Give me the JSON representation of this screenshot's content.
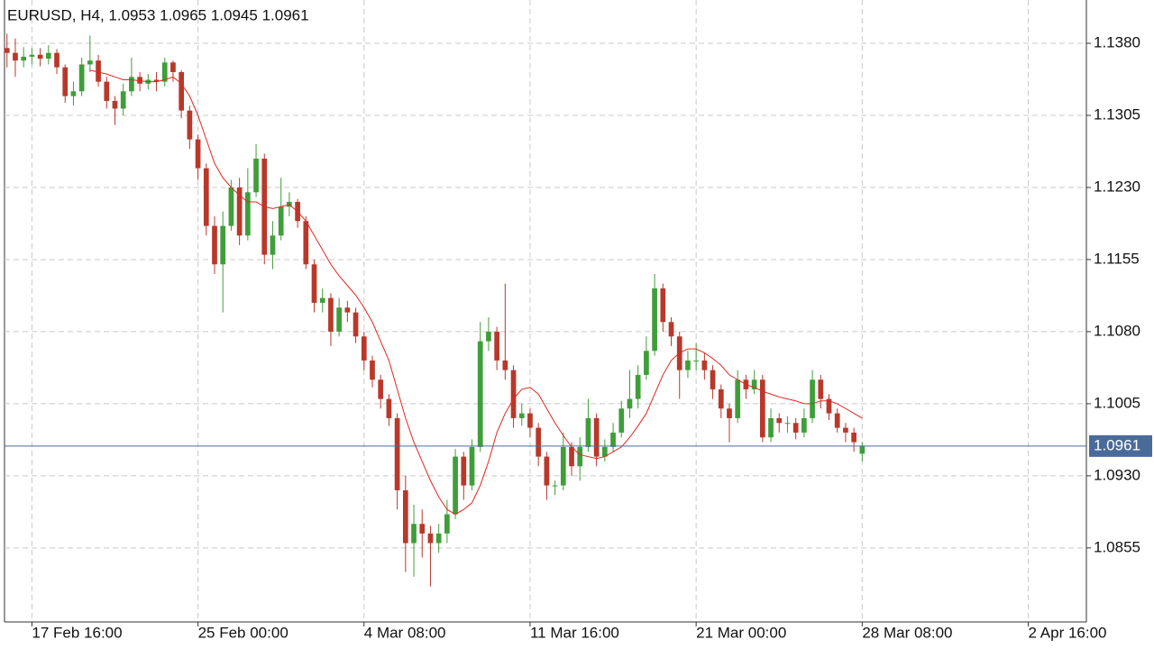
{
  "chart_data": {
    "type": "candlestick",
    "title": "EURUSD, H4, 1.0953 1.0965 1.0945 1.0961",
    "up_color": "#3f9e3a",
    "down_color": "#b8382a",
    "grid": true,
    "xlim": [
      -0.3,
      130
    ],
    "ylim": [
      1.0778,
      1.1425
    ],
    "xticks": [
      {
        "value": 3,
        "label": "17 Feb 16:00"
      },
      {
        "value": 23,
        "label": "25 Feb 00:00"
      },
      {
        "value": 43,
        "label": "4 Mar 08:00"
      },
      {
        "value": 63,
        "label": "11 Mar 16:00"
      },
      {
        "value": 83,
        "label": "21 Mar 00:00"
      },
      {
        "value": 103,
        "label": "28 Mar 08:00"
      },
      {
        "value": 123,
        "label": "2 Apr 16:00"
      }
    ],
    "yticks": [
      {
        "value": 1.138,
        "label": "1.1380"
      },
      {
        "value": 1.1305,
        "label": "1.1305"
      },
      {
        "value": 1.123,
        "label": "1.1230"
      },
      {
        "value": 1.1155,
        "label": "1.1155"
      },
      {
        "value": 1.108,
        "label": "1.1080"
      },
      {
        "value": 1.1005,
        "label": "1.1005"
      },
      {
        "value": 1.093,
        "label": "1.0930"
      },
      {
        "value": 1.0855,
        "label": "1.0855"
      }
    ],
    "current_price": 1.0961,
    "current_price_color": "#4a6b9a",
    "open": [
      1.1375,
      1.137,
      1.1362,
      1.1366,
      1.1368,
      1.1364,
      1.137,
      1.1355,
      1.1325,
      1.133,
      1.1358,
      1.1362,
      1.134,
      1.132,
      1.1312,
      1.133,
      1.1345,
      1.1338,
      1.1342,
      1.134,
      1.136,
      1.135,
      1.131,
      1.128,
      1.125,
      1.119,
      1.115,
      1.119,
      1.123,
      1.118,
      1.1225,
      1.126,
      1.116,
      1.118,
      1.121,
      1.1215,
      1.1195,
      1.115,
      1.111,
      1.1115,
      1.108,
      1.1105,
      1.11,
      1.1075,
      1.105,
      1.103,
      1.101,
      1.099,
      1.0915,
      1.086,
      1.088,
      1.087,
      1.086,
      1.087,
      1.089,
      1.095,
      1.092,
      1.096,
      1.107,
      1.108,
      1.105,
      1.104,
      1.099,
      1.0995,
      1.098,
      1.095,
      1.092,
      1.092,
      1.096,
      1.094,
      1.096,
      1.099,
      1.095,
      1.096,
      1.0975,
      1.1,
      1.101,
      1.1035,
      1.106,
      1.1125,
      1.109,
      1.1075,
      1.104,
      1.105,
      1.105,
      1.104,
      1.102,
      1.1,
      1.099,
      1.103,
      1.102,
      1.103,
      1.097,
      1.099,
      1.0985,
      1.0985,
      1.0975,
      1.099,
      1.103,
      1.101,
      1.0995,
      1.098,
      1.0975,
      1.0953
    ],
    "high": [
      1.139,
      1.1385,
      1.1376,
      1.1375,
      1.1375,
      1.1378,
      1.1374,
      1.1358,
      1.134,
      1.1365,
      1.1388,
      1.1368,
      1.1345,
      1.1325,
      1.1338,
      1.1365,
      1.135,
      1.1348,
      1.135,
      1.1365,
      1.1362,
      1.1352,
      1.1315,
      1.1285,
      1.1255,
      1.12,
      1.1205,
      1.1238,
      1.124,
      1.125,
      1.1275,
      1.1265,
      1.1195,
      1.124,
      1.1225,
      1.1218,
      1.12,
      1.1155,
      1.1125,
      1.112,
      1.1115,
      1.1112,
      1.1105,
      1.108,
      1.1055,
      1.1035,
      1.1015,
      1.0995,
      1.093,
      1.09,
      1.0895,
      1.0878,
      1.088,
      1.0905,
      1.0958,
      1.0955,
      1.0968,
      1.109,
      1.1095,
      1.1085,
      1.113,
      1.1045,
      1.1005,
      1.1,
      1.0985,
      1.0955,
      1.0925,
      1.0975,
      1.0965,
      1.097,
      1.101,
      1.0995,
      1.0968,
      1.0985,
      1.1008,
      1.104,
      1.1045,
      1.1075,
      1.114,
      1.113,
      1.1095,
      1.108,
      1.106,
      1.1068,
      1.1058,
      1.1045,
      1.1025,
      1.1005,
      1.104,
      1.1035,
      1.104,
      1.1035,
      1.1,
      1.0995,
      1.0992,
      1.099,
      1.1,
      1.104,
      1.1035,
      1.1015,
      1.1,
      1.0985,
      1.098,
      1.0965
    ],
    "low": [
      1.1355,
      1.1345,
      1.1355,
      1.1358,
      1.1356,
      1.1358,
      1.1348,
      1.1318,
      1.1315,
      1.1325,
      1.135,
      1.1335,
      1.1312,
      1.1295,
      1.1305,
      1.1325,
      1.133,
      1.1332,
      1.133,
      1.1335,
      1.134,
      1.1302,
      1.127,
      1.1238,
      1.118,
      1.114,
      1.11,
      1.1185,
      1.117,
      1.1175,
      1.122,
      1.115,
      1.1145,
      1.1175,
      1.12,
      1.1188,
      1.1145,
      1.11,
      1.11,
      1.1065,
      1.1075,
      1.109,
      1.1068,
      1.104,
      1.1022,
      1.1,
      1.0982,
      1.0895,
      1.083,
      1.0825,
      1.0845,
      1.0815,
      1.085,
      1.086,
      1.0885,
      1.0905,
      1.0915,
      1.0955,
      1.106,
      1.104,
      1.103,
      1.098,
      1.0982,
      1.097,
      1.094,
      1.0905,
      1.091,
      1.0915,
      1.093,
      1.0925,
      1.0955,
      1.094,
      1.0945,
      1.0955,
      1.097,
      1.099,
      1.1,
      1.103,
      1.1055,
      1.108,
      1.1065,
      1.101,
      1.1032,
      1.104,
      1.103,
      1.101,
      1.099,
      1.0965,
      1.0985,
      1.101,
      1.1015,
      1.0965,
      1.0965,
      1.0975,
      1.0975,
      1.0968,
      1.097,
      1.0985,
      1.1,
      1.0988,
      1.0975,
      1.0965,
      1.0955,
      1.0945
    ],
    "close": [
      1.137,
      1.1362,
      1.1366,
      1.1368,
      1.1364,
      1.137,
      1.1355,
      1.1325,
      1.133,
      1.1358,
      1.1362,
      1.134,
      1.132,
      1.1312,
      1.133,
      1.1345,
      1.1338,
      1.1342,
      1.134,
      1.136,
      1.135,
      1.131,
      1.128,
      1.125,
      1.119,
      1.115,
      1.119,
      1.123,
      1.118,
      1.1225,
      1.126,
      1.116,
      1.118,
      1.121,
      1.1215,
      1.1195,
      1.115,
      1.111,
      1.1115,
      1.108,
      1.1105,
      1.11,
      1.1075,
      1.105,
      1.103,
      1.101,
      1.099,
      1.0915,
      1.086,
      1.088,
      1.087,
      1.086,
      1.087,
      1.089,
      1.095,
      1.092,
      1.096,
      1.107,
      1.108,
      1.105,
      1.104,
      1.099,
      1.0995,
      1.098,
      1.095,
      1.092,
      1.092,
      1.096,
      1.094,
      1.096,
      1.099,
      1.095,
      1.096,
      1.0975,
      1.1,
      1.101,
      1.1035,
      1.106,
      1.1125,
      1.109,
      1.1075,
      1.104,
      1.105,
      1.105,
      1.104,
      1.102,
      1.1,
      1.099,
      1.103,
      1.102,
      1.103,
      1.097,
      1.099,
      1.0985,
      1.0985,
      1.0975,
      1.099,
      1.103,
      1.101,
      1.0995,
      1.098,
      1.0975,
      1.0965,
      1.0961
    ],
    "ma": {
      "color": "#e0271f",
      "values": [
        null,
        null,
        null,
        null,
        null,
        null,
        null,
        null,
        null,
        null,
        1.1352,
        1.135,
        1.1348,
        1.1345,
        1.1342,
        1.1342,
        1.1341,
        1.134,
        1.134,
        1.1342,
        1.1345,
        1.1338,
        1.1325,
        1.1305,
        1.128,
        1.1255,
        1.124,
        1.123,
        1.1222,
        1.1215,
        1.1215,
        1.121,
        1.1208,
        1.121,
        1.1212,
        1.1205,
        1.1195,
        1.118,
        1.1165,
        1.115,
        1.1138,
        1.1128,
        1.1118,
        1.1105,
        1.109,
        1.107,
        1.105,
        1.102,
        1.099,
        1.0965,
        1.0945,
        1.0925,
        1.0908,
        1.0895,
        1.089,
        1.0895,
        1.0902,
        1.092,
        1.0945,
        1.0975,
        1.0995,
        1.101,
        1.102,
        1.1022,
        1.1015,
        1.1,
        1.0985,
        1.0972,
        1.096,
        1.0952,
        1.095,
        1.0948,
        1.095,
        1.0955,
        1.096,
        1.097,
        1.0982,
        1.0995,
        1.1015,
        1.1035,
        1.105,
        1.1058,
        1.1062,
        1.1062,
        1.1058,
        1.1052,
        1.1045,
        1.1035,
        1.103,
        1.1025,
        1.1022,
        1.1018,
        1.1015,
        1.1012,
        1.101,
        1.1008,
        1.1005,
        1.1005,
        1.1008,
        1.1008,
        1.1005,
        1.1,
        1.0995,
        1.099
      ]
    }
  }
}
